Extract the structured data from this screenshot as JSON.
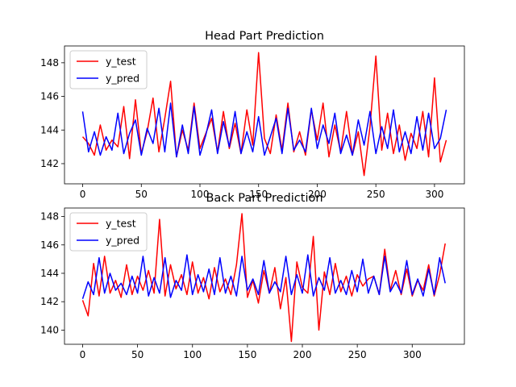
{
  "chart_data": [
    {
      "type": "line",
      "title": "Head Part Prediction",
      "xlabel": "",
      "ylabel": "",
      "xlim": [
        -15.5,
        325.5
      ],
      "ylim": [
        140.8,
        149.0
      ],
      "xticks": [
        0,
        50,
        100,
        150,
        200,
        250,
        300
      ],
      "yticks": [
        142,
        144,
        146,
        148
      ],
      "grid": false,
      "legend_position": "top-left",
      "series": [
        {
          "name": "y_test",
          "color": "#ff0000",
          "x": [
            0,
            5,
            10,
            15,
            20,
            25,
            30,
            35,
            40,
            45,
            50,
            55,
            60,
            65,
            70,
            75,
            80,
            85,
            90,
            95,
            100,
            105,
            110,
            115,
            120,
            125,
            130,
            135,
            140,
            145,
            150,
            155,
            160,
            165,
            170,
            175,
            180,
            185,
            190,
            195,
            200,
            205,
            210,
            215,
            220,
            225,
            230,
            235,
            240,
            245,
            250,
            255,
            260,
            265,
            270,
            275,
            280,
            285,
            290,
            295,
            300,
            305,
            310
          ],
          "values": [
            143.6,
            143.2,
            142.5,
            144.3,
            142.8,
            143.4,
            143.0,
            145.4,
            142.3,
            145.8,
            142.6,
            143.9,
            145.9,
            142.7,
            144.7,
            146.9,
            142.4,
            144.0,
            142.8,
            145.6,
            142.9,
            143.8,
            144.7,
            142.7,
            145.1,
            142.9,
            144.4,
            142.6,
            145.2,
            143.1,
            148.6,
            143.5,
            142.6,
            144.9,
            142.8,
            145.6,
            142.7,
            143.9,
            142.5,
            145.2,
            143.4,
            145.6,
            142.4,
            144.3,
            142.7,
            145.1,
            142.5,
            143.9,
            141.3,
            144.2,
            148.4,
            142.8,
            145.0,
            142.6,
            144.3,
            142.2,
            143.8,
            142.9,
            145.1,
            142.4,
            147.1,
            142.1,
            143.4
          ]
        },
        {
          "name": "y_pred",
          "color": "#0000ff",
          "x": [
            0,
            5,
            10,
            15,
            20,
            25,
            30,
            35,
            40,
            45,
            50,
            55,
            60,
            65,
            70,
            75,
            80,
            85,
            90,
            95,
            100,
            105,
            110,
            115,
            120,
            125,
            130,
            135,
            140,
            145,
            150,
            155,
            160,
            165,
            170,
            175,
            180,
            185,
            190,
            195,
            200,
            205,
            210,
            215,
            220,
            225,
            230,
            235,
            240,
            245,
            250,
            255,
            260,
            265,
            270,
            275,
            280,
            285,
            290,
            295,
            300,
            305,
            310
          ],
          "values": [
            145.1,
            142.7,
            143.9,
            142.5,
            143.6,
            142.8,
            145.0,
            142.6,
            143.8,
            144.6,
            142.5,
            144.1,
            143.2,
            145.3,
            142.7,
            145.6,
            142.4,
            144.3,
            142.6,
            145.4,
            142.5,
            143.7,
            145.2,
            142.6,
            144.5,
            143.0,
            145.1,
            142.6,
            143.9,
            142.7,
            144.8,
            142.5,
            143.6,
            144.7,
            142.6,
            145.3,
            142.8,
            143.4,
            142.7,
            145.3,
            142.9,
            144.3,
            143.2,
            145.0,
            142.6,
            143.7,
            142.5,
            144.6,
            143.1,
            145.1,
            142.6,
            144.2,
            142.9,
            145.2,
            142.7,
            143.9,
            142.6,
            144.8,
            142.8,
            145.0,
            142.9,
            143.5,
            145.2
          ]
        }
      ]
    },
    {
      "type": "line",
      "title": "Back Part Prediction",
      "xlabel": "",
      "ylabel": "",
      "xlim": [
        -16.5,
        347.5
      ],
      "ylim": [
        139.0,
        148.6
      ],
      "xticks": [
        0,
        50,
        100,
        150,
        200,
        250,
        300
      ],
      "yticks": [
        140,
        142,
        144,
        146,
        148
      ],
      "grid": false,
      "legend_position": "top-left",
      "series": [
        {
          "name": "y_test",
          "color": "#ff0000",
          "x": [
            0,
            5,
            10,
            15,
            20,
            25,
            30,
            35,
            40,
            45,
            50,
            55,
            60,
            65,
            70,
            75,
            80,
            85,
            90,
            95,
            100,
            105,
            110,
            115,
            120,
            125,
            130,
            135,
            140,
            145,
            150,
            155,
            160,
            165,
            170,
            175,
            180,
            185,
            190,
            195,
            200,
            205,
            210,
            215,
            220,
            225,
            230,
            235,
            240,
            245,
            250,
            255,
            260,
            265,
            270,
            275,
            280,
            285,
            290,
            295,
            300,
            305,
            310,
            315,
            320,
            325,
            330
          ],
          "values": [
            142.1,
            141.0,
            144.7,
            142.4,
            145.2,
            142.6,
            143.5,
            142.3,
            144.6,
            142.5,
            143.8,
            142.8,
            144.2,
            142.6,
            147.8,
            142.4,
            144.6,
            142.9,
            143.9,
            142.5,
            144.8,
            142.6,
            143.7,
            142.2,
            144.4,
            142.7,
            143.6,
            142.5,
            144.6,
            148.2,
            142.3,
            143.5,
            141.9,
            144.2,
            142.6,
            144.4,
            141.5,
            143.7,
            139.2,
            144.8,
            143.0,
            142.6,
            146.6,
            140.0,
            144.1,
            142.5,
            144.7,
            142.7,
            143.8,
            142.4,
            143.9,
            143.1,
            143.6,
            143.8,
            142.5,
            145.7,
            142.8,
            144.2,
            142.5,
            144.3,
            142.4,
            143.5,
            142.8,
            144.6,
            142.4,
            143.9,
            146.1
          ]
        },
        {
          "name": "y_pred",
          "color": "#0000ff",
          "x": [
            0,
            5,
            10,
            15,
            20,
            25,
            30,
            35,
            40,
            45,
            50,
            55,
            60,
            65,
            70,
            75,
            80,
            85,
            90,
            95,
            100,
            105,
            110,
            115,
            120,
            125,
            130,
            135,
            140,
            145,
            150,
            155,
            160,
            165,
            170,
            175,
            180,
            185,
            190,
            195,
            200,
            205,
            210,
            215,
            220,
            225,
            230,
            235,
            240,
            245,
            250,
            255,
            260,
            265,
            270,
            275,
            280,
            285,
            290,
            295,
            300,
            305,
            310,
            315,
            320,
            325,
            330
          ],
          "values": [
            142.2,
            143.4,
            142.5,
            145.1,
            142.6,
            144.0,
            142.8,
            143.3,
            142.5,
            143.8,
            142.6,
            145.2,
            142.4,
            143.7,
            142.6,
            145.1,
            142.3,
            143.5,
            142.8,
            145.3,
            142.5,
            143.9,
            142.7,
            144.3,
            142.5,
            145.1,
            142.6,
            143.8,
            142.4,
            145.2,
            142.8,
            143.6,
            142.5,
            144.9,
            142.6,
            143.4,
            142.7,
            145.2,
            142.5,
            143.9,
            142.6,
            145.3,
            142.4,
            143.7,
            142.8,
            145.1,
            142.6,
            143.5,
            142.5,
            144.2,
            142.7,
            145.0,
            142.6,
            143.8,
            142.5,
            145.2,
            142.7,
            143.4,
            142.6,
            144.9,
            142.5,
            143.6,
            142.4,
            144.3,
            142.5,
            145.1,
            143.3
          ]
        }
      ]
    }
  ]
}
